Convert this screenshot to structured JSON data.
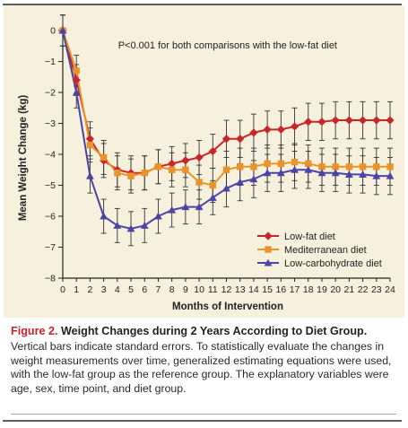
{
  "figure": {
    "label": "Figure 2.",
    "title": "Weight Changes during 2 Years According to Diet Group.",
    "caption": "Vertical bars indicate standard errors. To statistically evaluate the changes in weight measurements over time, generalized estimating equations were used, with the low-fat group as the reference group. The explanatory variables were age, sex, time point, and diet group."
  },
  "chart_data": {
    "type": "line",
    "title": "",
    "annotation": "P<0.001 for both comparisons with the low-fat diet",
    "xlabel": "Months of Intervention",
    "ylabel": "Mean Weight Change (kg)",
    "xlim": [
      0,
      24
    ],
    "ylim": [
      -8,
      0
    ],
    "xticks": [
      "0",
      "1",
      "2",
      "3",
      "4",
      "5",
      "6",
      "7",
      "8",
      "9",
      "10",
      "11",
      "12",
      "13",
      "14",
      "15",
      "16",
      "17",
      "18",
      "19",
      "20",
      "21",
      "22",
      "23",
      "24"
    ],
    "yticks": [
      "0",
      "−1",
      "−2",
      "−3",
      "−4",
      "−5",
      "−6",
      "−7",
      "−8"
    ],
    "legend_position": "bottom-right",
    "grid": false,
    "x": [
      0,
      1,
      2,
      3,
      4,
      5,
      6,
      7,
      8,
      9,
      10,
      11,
      12,
      13,
      14,
      15,
      16,
      17,
      18,
      19,
      20,
      21,
      22,
      23,
      24
    ],
    "series": [
      {
        "name": "Low-fat diet",
        "marker": "diamond",
        "color": "#c8252a",
        "values": [
          0,
          -1.6,
          -3.5,
          -4.2,
          -4.5,
          -4.6,
          -4.6,
          -4.4,
          -4.3,
          -4.2,
          -4.1,
          -3.9,
          -3.5,
          -3.5,
          -3.3,
          -3.2,
          -3.2,
          -3.1,
          -2.95,
          -2.95,
          -2.9,
          -2.9,
          -2.9,
          -2.9,
          -2.9
        ],
        "errors": [
          0.5,
          0.5,
          0.55,
          0.55,
          0.55,
          0.55,
          0.55,
          0.55,
          0.55,
          0.55,
          0.55,
          0.55,
          0.6,
          0.6,
          0.6,
          0.6,
          0.6,
          0.6,
          0.6,
          0.6,
          0.6,
          0.6,
          0.6,
          0.6,
          0.6
        ]
      },
      {
        "name": "Mediterranean diet",
        "marker": "square",
        "color": "#e8942a",
        "values": [
          0,
          -1.3,
          -3.7,
          -4.1,
          -4.6,
          -4.7,
          -4.6,
          -4.4,
          -4.5,
          -4.5,
          -4.9,
          -5.0,
          -4.5,
          -4.4,
          -4.4,
          -4.3,
          -4.3,
          -4.25,
          -4.3,
          -4.4,
          -4.4,
          -4.4,
          -4.4,
          -4.4,
          -4.4
        ],
        "errors": [
          0.5,
          0.5,
          0.55,
          0.55,
          0.55,
          0.55,
          0.55,
          0.55,
          0.55,
          0.55,
          0.55,
          0.55,
          0.6,
          0.6,
          0.6,
          0.6,
          0.6,
          0.6,
          0.6,
          0.6,
          0.6,
          0.6,
          0.6,
          0.6,
          0.6
        ]
      },
      {
        "name": "Low-carbohydrate diet",
        "marker": "triangle",
        "color": "#4b44a6",
        "values": [
          0,
          -2.0,
          -4.7,
          -6.0,
          -6.3,
          -6.4,
          -6.3,
          -6.0,
          -5.8,
          -5.7,
          -5.7,
          -5.4,
          -5.1,
          -4.9,
          -4.8,
          -4.6,
          -4.6,
          -4.5,
          -4.5,
          -4.6,
          -4.6,
          -4.65,
          -4.65,
          -4.7,
          -4.7
        ],
        "errors": [
          0.5,
          0.5,
          0.55,
          0.55,
          0.55,
          0.55,
          0.55,
          0.55,
          0.55,
          0.55,
          0.55,
          0.55,
          0.6,
          0.6,
          0.6,
          0.6,
          0.6,
          0.6,
          0.6,
          0.6,
          0.6,
          0.6,
          0.6,
          0.6,
          0.6
        ]
      }
    ]
  }
}
